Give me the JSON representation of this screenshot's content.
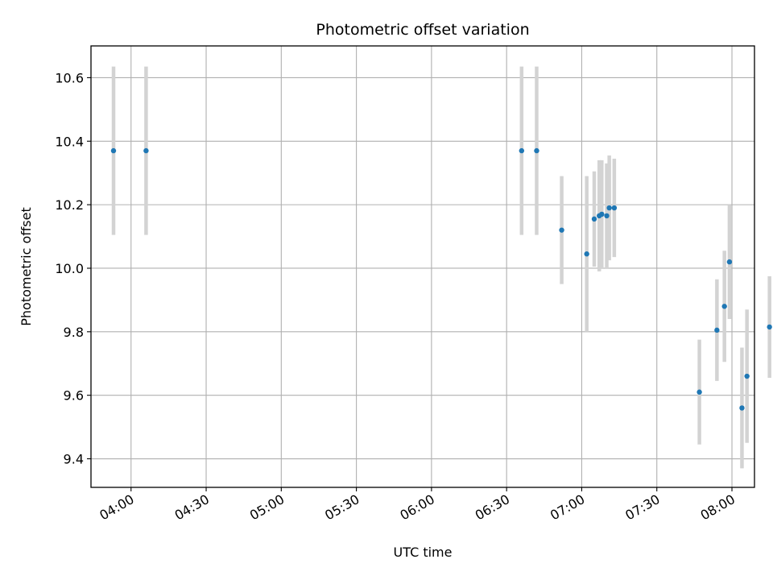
{
  "chart_data": {
    "type": "scatter",
    "title": "Photometric offset variation",
    "xlabel": "UTC time",
    "ylabel": "Photometric offset",
    "x_ticks": [
      "04:00",
      "04:30",
      "05:00",
      "05:30",
      "06:00",
      "06:30",
      "07:00",
      "07:30",
      "08:00"
    ],
    "y_ticks": [
      "9.4",
      "9.6",
      "9.8",
      "10.0",
      "10.2",
      "10.4",
      "10.6"
    ],
    "xlim": [
      "03:44",
      "08:09"
    ],
    "ylim": [
      9.31,
      10.7
    ],
    "grid": true,
    "marker_color": "#1f77b4",
    "errorbar_color": "#d3d3d3",
    "points": [
      {
        "x": "03:53",
        "y": 10.37,
        "err": 0.265
      },
      {
        "x": "04:06",
        "y": 10.37,
        "err": 0.265
      },
      {
        "x": "06:36",
        "y": 10.37,
        "err": 0.265
      },
      {
        "x": "06:42",
        "y": 10.37,
        "err": 0.265
      },
      {
        "x": "06:52",
        "y": 10.12,
        "err": 0.17
      },
      {
        "x": "07:02",
        "y": 10.045,
        "err": 0.245
      },
      {
        "x": "07:05",
        "y": 10.155,
        "err": 0.15
      },
      {
        "x": "07:07",
        "y": 10.165,
        "err": 0.175
      },
      {
        "x": "07:08",
        "y": 10.17,
        "err": 0.17
      },
      {
        "x": "07:10",
        "y": 10.165,
        "err": 0.165
      },
      {
        "x": "07:11",
        "y": 10.19,
        "err": 0.165
      },
      {
        "x": "07:13",
        "y": 10.19,
        "err": 0.155
      },
      {
        "x": "07:47",
        "y": 9.61,
        "err": 0.165
      },
      {
        "x": "07:54",
        "y": 9.805,
        "err": 0.16
      },
      {
        "x": "07:57",
        "y": 9.88,
        "err": 0.175
      },
      {
        "x": "07:59",
        "y": 10.02,
        "err": 0.18
      },
      {
        "x": "08:04",
        "y": 9.56,
        "err": 0.19
      },
      {
        "x": "08:06",
        "y": 9.66,
        "err": 0.21
      },
      {
        "x": "08:15",
        "y": 9.815,
        "err": 0.16
      }
    ]
  }
}
